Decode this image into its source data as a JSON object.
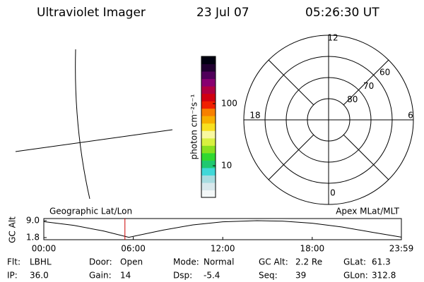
{
  "header": {
    "title": "Ultraviolet Imager",
    "date": "23 Jul 07",
    "time": "05:26:30 UT"
  },
  "colorbar": {
    "label": "photon cm⁻²s⁻¹",
    "log": true,
    "lim": [
      3.1,
      575
    ],
    "ticks": [
      10,
      100
    ],
    "colors": [
      "#f4f8f8",
      "#d8e8ec",
      "#a8dce0",
      "#40d8d8",
      "#20c870",
      "#30d830",
      "#88e020",
      "#d8f040",
      "#f8f8a0",
      "#f8e020",
      "#f8b000",
      "#f88000",
      "#f02000",
      "#d00010",
      "#b00040",
      "#880070",
      "#50005a",
      "#200030",
      "#000010"
    ]
  },
  "polar": {
    "mlt_ticks": [
      12,
      18,
      6,
      0
    ],
    "lat_lim": [
      50,
      90
    ],
    "lat_ticks": [
      60,
      70,
      80
    ]
  },
  "altitude": {
    "type": "line",
    "ylabel": "GC Alt",
    "left_label": "Geographic Lat/Lon",
    "right_label": "Apex MLat/MLT",
    "x": [
      0,
      2,
      4,
      5.7,
      8,
      10,
      12,
      14.3,
      16,
      18,
      20,
      22,
      23.98
    ],
    "values": [
      8.6,
      7.0,
      4.6,
      1.9,
      5.0,
      7.2,
      8.5,
      9.0,
      8.8,
      7.9,
      6.3,
      4.1,
      2.0
    ],
    "marker": 5.44,
    "marker_color": "#cc0000",
    "xlim": [
      0,
      23.98
    ],
    "ylim": [
      1.8,
      9.0
    ],
    "xticks": [
      {
        "value": 0,
        "label": "00:00"
      },
      {
        "value": 6,
        "label": "06:00"
      },
      {
        "value": 12,
        "label": "12:00"
      },
      {
        "value": 18,
        "label": "18:00"
      },
      {
        "value": 23.98,
        "label": "23:59"
      }
    ],
    "yticks": [
      1.8,
      {
        "value": 9,
        "label": "9.0"
      }
    ]
  },
  "footer": [
    [
      {
        "label": "Flt:",
        "value": "LBHL"
      },
      {
        "label": "Door:",
        "value": "Open"
      },
      {
        "label": "Mode:",
        "value": "Normal"
      },
      {
        "label": "GC Alt:",
        "value": "2.2 Re"
      },
      {
        "label": "GLat:",
        "value": "61.3"
      }
    ],
    [
      {
        "label": "IP:",
        "value": "36.0"
      },
      {
        "label": "Gain:",
        "value": "14"
      },
      {
        "label": "Dsp:",
        "value": "-5.4"
      },
      {
        "label": "Seq:",
        "value": "39"
      },
      {
        "label": "GLon:",
        "value": "312.8"
      }
    ]
  ]
}
